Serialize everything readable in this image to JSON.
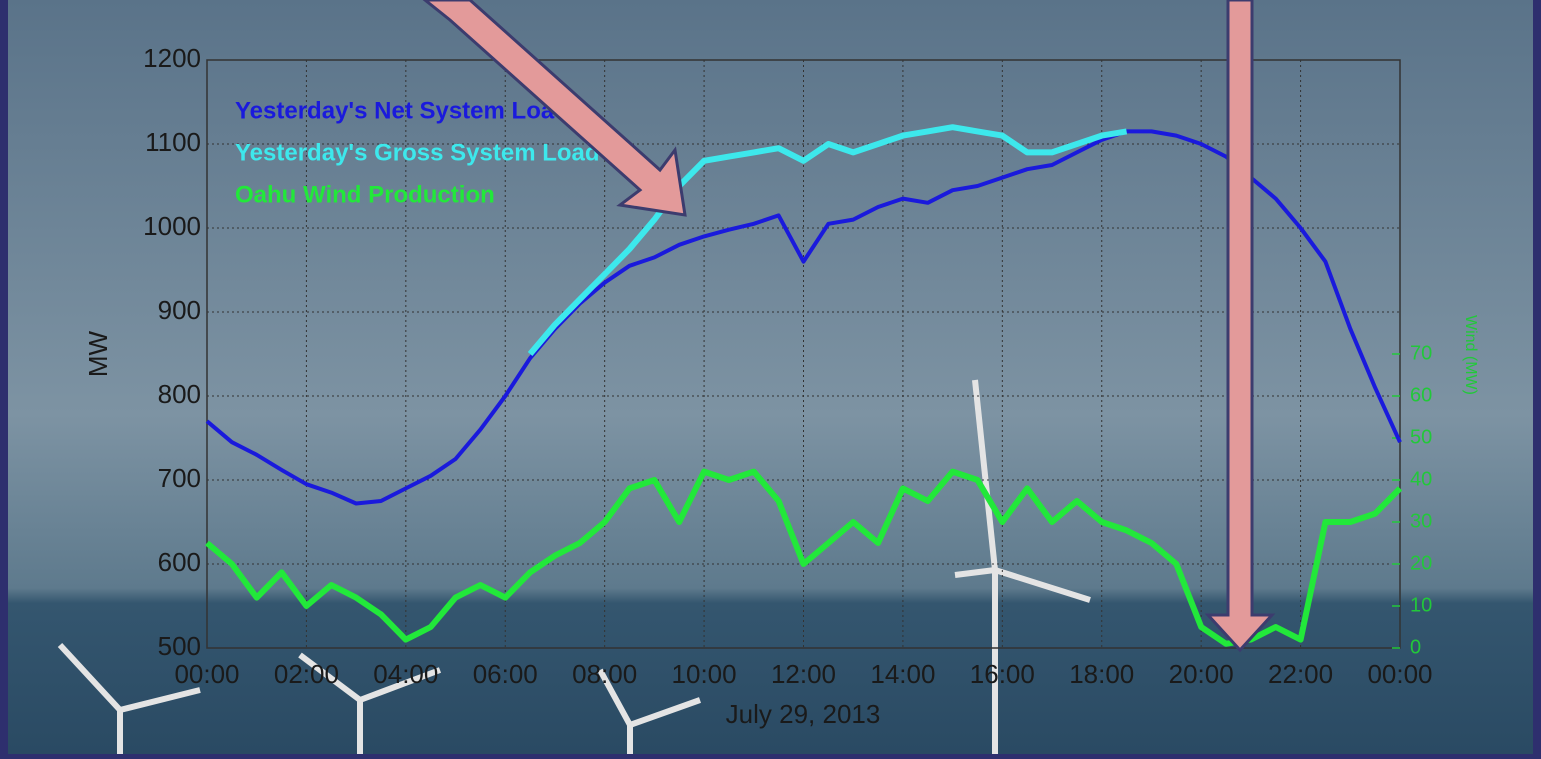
{
  "chart_data": {
    "type": "line",
    "ylabel": "MW",
    "y2label": "Wind (MW)",
    "xlabel": "July 29, 2013",
    "xlim": [
      0,
      24
    ],
    "xticks": [
      {
        "value": 0,
        "label": "00:00"
      },
      {
        "value": 2,
        "label": "02:00"
      },
      {
        "value": 4,
        "label": "04:00"
      },
      {
        "value": 6,
        "label": "06:00"
      },
      {
        "value": 8,
        "label": "08:00"
      },
      {
        "value": 10,
        "label": "10:00"
      },
      {
        "value": 12,
        "label": "12:00"
      },
      {
        "value": 14,
        "label": "14:00"
      },
      {
        "value": 16,
        "label": "16:00"
      },
      {
        "value": 18,
        "label": "18:00"
      },
      {
        "value": 20,
        "label": "20:00"
      },
      {
        "value": 22,
        "label": "22:00"
      },
      {
        "value": 24,
        "label": "00:00"
      }
    ],
    "ylim": [
      500,
      1200
    ],
    "yticks": [
      500,
      600,
      700,
      800,
      900,
      1000,
      1100,
      1200
    ],
    "y2lim": [
      0,
      140
    ],
    "y2ticks": [
      0,
      10,
      20,
      30,
      40,
      50,
      60,
      70
    ],
    "grid": true,
    "legend": "upper left",
    "x": [
      0,
      0.5,
      1,
      1.5,
      2,
      2.5,
      3,
      3.5,
      4,
      4.5,
      5,
      5.5,
      6,
      6.5,
      7,
      7.5,
      8,
      8.5,
      9,
      9.5,
      10,
      10.5,
      11,
      11.5,
      12,
      12.5,
      13,
      13.5,
      14,
      14.5,
      15,
      15.5,
      16,
      16.5,
      17,
      17.5,
      18,
      18.5,
      19,
      19.5,
      20,
      20.5,
      21,
      21.5,
      22,
      22.5,
      23,
      23.5,
      24
    ],
    "series": [
      {
        "name": "Yesterday's Net System Load",
        "color": "#1a1adc",
        "values": [
          770,
          745,
          730,
          712,
          695,
          685,
          672,
          675,
          690,
          705,
          725,
          760,
          800,
          845,
          880,
          910,
          935,
          955,
          965,
          980,
          990,
          998,
          1005,
          1015,
          960,
          1005,
          1010,
          1025,
          1035,
          1030,
          1045,
          1050,
          1060,
          1070,
          1075,
          1090,
          1105,
          1115,
          1115,
          1110,
          1100,
          1085,
          1060,
          1035,
          1000,
          960,
          880,
          810,
          745
        ]
      },
      {
        "name": "Yesterday's Gross System Load",
        "color": "#3de8ec",
        "values": [
          null,
          null,
          null,
          null,
          null,
          null,
          null,
          null,
          null,
          null,
          null,
          null,
          null,
          850,
          885,
          915,
          945,
          975,
          1010,
          1050,
          1080,
          1085,
          1090,
          1095,
          1080,
          1100,
          1090,
          1100,
          1110,
          1115,
          1120,
          1115,
          1110,
          1090,
          1090,
          1100,
          1110,
          1115,
          null,
          null,
          null,
          null,
          null,
          null,
          null,
          null,
          null,
          null,
          null
        ]
      },
      {
        "name": "Oahu Wind Production",
        "color": "#22e83a",
        "axis": "y2",
        "values": [
          25,
          20,
          12,
          18,
          10,
          15,
          12,
          8,
          2,
          5,
          12,
          15,
          12,
          18,
          22,
          25,
          30,
          38,
          40,
          30,
          42,
          40,
          42,
          35,
          20,
          25,
          30,
          25,
          38,
          35,
          42,
          40,
          30,
          38,
          30,
          35,
          30,
          28,
          25,
          20,
          5,
          1,
          2,
          5,
          2,
          30,
          30,
          32,
          38
        ]
      }
    ]
  }
}
